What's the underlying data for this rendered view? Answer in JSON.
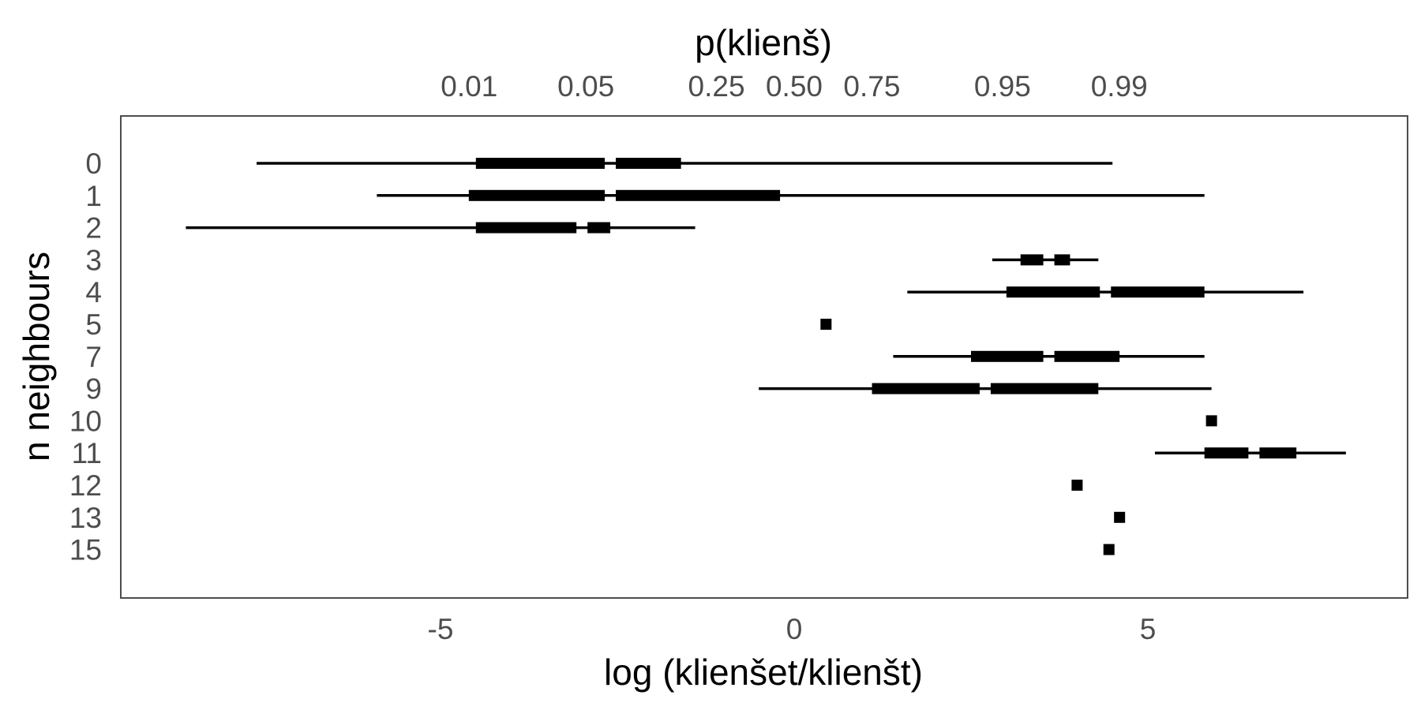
{
  "chart_data": {
    "type": "interval",
    "x_title": "log (klienšet/klienšt)",
    "x2_title": "p(klienš)",
    "y_title": "n neighbours",
    "xlim": [
      -9.3,
      8.8
    ],
    "x_ticks": [
      {
        "value": -5,
        "label": "-5"
      },
      {
        "value": 0,
        "label": "0"
      },
      {
        "value": 5,
        "label": "5"
      }
    ],
    "x2_ticks": [
      {
        "p": 0.01,
        "label": "0.01"
      },
      {
        "p": 0.05,
        "label": "0.05"
      },
      {
        "p": 0.25,
        "label": "0.25"
      },
      {
        "p": 0.5,
        "label": "0.50"
      },
      {
        "p": 0.75,
        "label": "0.75"
      },
      {
        "p": 0.95,
        "label": "0.95"
      },
      {
        "p": 0.99,
        "label": "0.99"
      }
    ],
    "categories": [
      "0",
      "1",
      "2",
      "3",
      "4",
      "5",
      "7",
      "9",
      "10",
      "11",
      "12",
      "13",
      "15"
    ],
    "rows": [
      {
        "label": "0",
        "min": -7.6,
        "q1": -4.5,
        "median": -2.6,
        "q3": -1.6,
        "max": 4.5
      },
      {
        "label": "1",
        "min": -5.9,
        "q1": -4.6,
        "median": -2.6,
        "q3": -0.2,
        "max": 5.8
      },
      {
        "label": "2",
        "min": -8.6,
        "q1": -4.5,
        "median": -3.0,
        "q3": -2.6,
        "max": -1.4
      },
      {
        "label": "3",
        "min": 2.8,
        "q1": 3.2,
        "median": 3.6,
        "q3": 3.9,
        "max": 4.3
      },
      {
        "label": "4",
        "min": 1.6,
        "q1": 3.0,
        "median": 4.4,
        "q3": 5.8,
        "max": 7.2
      },
      {
        "label": "5",
        "point": 0.45
      },
      {
        "label": "7",
        "min": 1.4,
        "q1": 2.5,
        "median": 3.6,
        "q3": 4.6,
        "max": 5.8
      },
      {
        "label": "9",
        "min": -0.5,
        "q1": 1.1,
        "median": 2.7,
        "q3": 4.3,
        "max": 5.9
      },
      {
        "label": "10",
        "point": 5.9
      },
      {
        "label": "11",
        "min": 5.1,
        "q1": 5.8,
        "median": 6.5,
        "q3": 7.1,
        "max": 7.8
      },
      {
        "label": "12",
        "point": 4.0
      },
      {
        "label": "13",
        "point": 4.6
      },
      {
        "label": "15",
        "point": 4.45
      }
    ],
    "legend": "none",
    "grid": false
  }
}
